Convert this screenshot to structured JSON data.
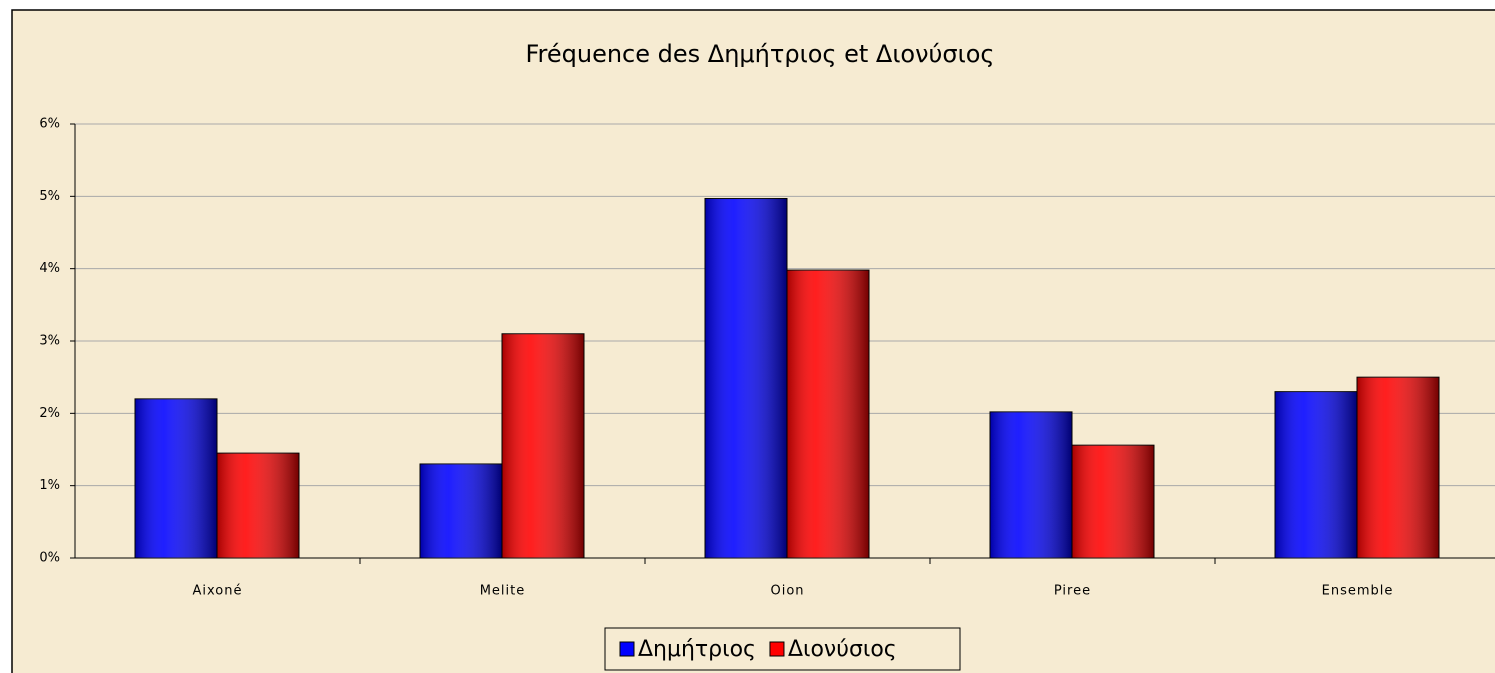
{
  "chart_data": {
    "type": "bar",
    "title": "Fréquence des Δημήτριος et Διονύσιος",
    "categories": [
      "Aixoné",
      "Melite",
      "Oion",
      "Piree",
      "Ensemble"
    ],
    "series": [
      {
        "name": "Δημήτριος",
        "color": "#0000ff",
        "values": [
          2.2,
          1.3,
          4.97,
          2.02,
          2.3
        ]
      },
      {
        "name": "Διονύσιος",
        "color": "#ff0000",
        "values": [
          1.45,
          3.1,
          3.98,
          1.56,
          2.5
        ]
      }
    ],
    "ylim": [
      0,
      6
    ],
    "yticks": [
      {
        "value": 0,
        "label": "0%"
      },
      {
        "value": 1,
        "label": "1%"
      },
      {
        "value": 2,
        "label": "2%"
      },
      {
        "value": 3,
        "label": "3%"
      },
      {
        "value": 4,
        "label": "4%"
      },
      {
        "value": 5,
        "label": "5%"
      },
      {
        "value": 6,
        "label": "6%"
      }
    ],
    "grid": true,
    "legend": "bottom"
  }
}
